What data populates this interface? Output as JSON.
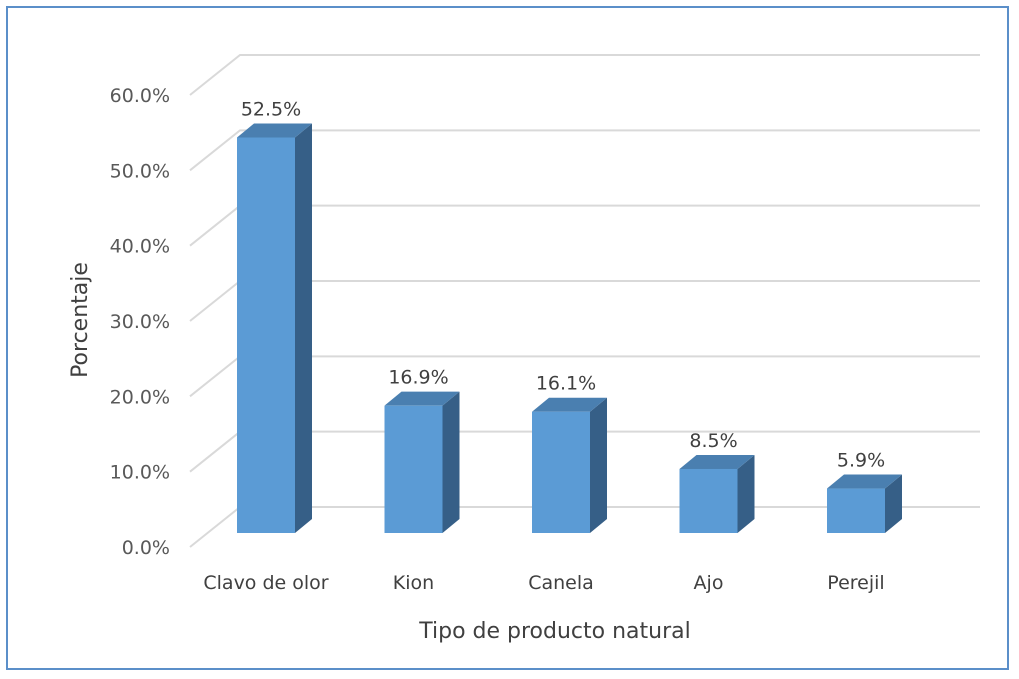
{
  "chart_data": {
    "type": "bar",
    "title": "",
    "xlabel": "Tipo de producto natural",
    "ylabel": "Porcentaje",
    "categories": [
      "Clavo de olor",
      "Kion",
      "Canela",
      "Ajo",
      "Perejil"
    ],
    "values": [
      52.5,
      16.9,
      16.1,
      8.5,
      5.9
    ],
    "data_labels": [
      "52.5%",
      "16.9%",
      "16.1%",
      "8.5%",
      "5.9%"
    ],
    "ylim": [
      0,
      60
    ],
    "yticks": [
      0,
      10,
      20,
      30,
      40,
      50,
      60
    ],
    "ytick_labels": [
      "0.0%",
      "10.0%",
      "20.0%",
      "30.0%",
      "40.0%",
      "50.0%",
      "60.0%"
    ],
    "grid": true,
    "style": "3d-column",
    "colors": {
      "front": "#5b9bd5",
      "side": "#365f87",
      "top": "#4a7fb0",
      "grid": "#d9d9d9",
      "border": "#5b8fc9"
    }
  }
}
